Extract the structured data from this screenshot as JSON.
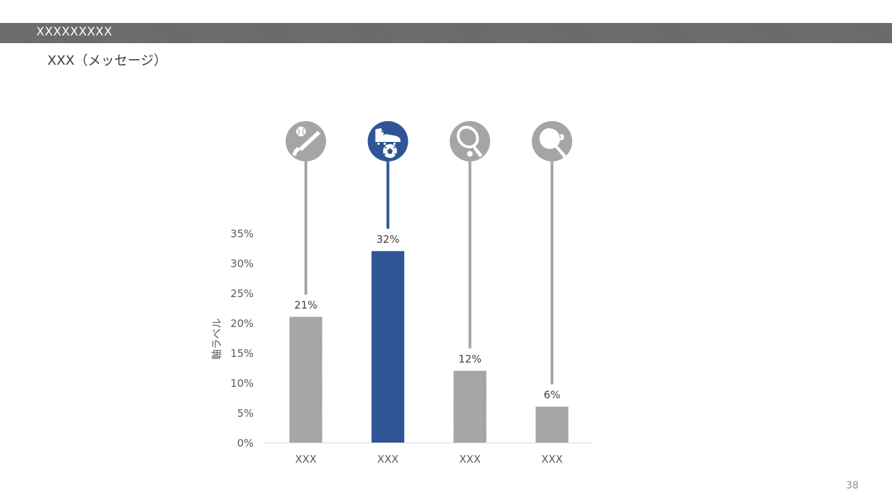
{
  "slide": {
    "header_title": "XXXXXXXXX",
    "message": "XXX（メッセージ）",
    "page_number": "38"
  },
  "colors": {
    "accent": "#2f5597",
    "neutral_bar": "#a5a5a5",
    "header_band": "#6a6a6a",
    "axis_text": "#595959"
  },
  "chart_data": {
    "type": "bar",
    "categories": [
      "XXX",
      "XXX",
      "XXX",
      "XXX"
    ],
    "values": [
      21,
      32,
      12,
      6
    ],
    "data_labels": [
      "21%",
      "32%",
      "12%",
      "6%"
    ],
    "highlight_index": 1,
    "icons": [
      "baseball-icon",
      "soccer-icon",
      "tennis-icon",
      "table-tennis-icon"
    ],
    "ylabel": "軸ラベル",
    "ylim": [
      0,
      35
    ],
    "yticks": [
      0,
      5,
      10,
      15,
      20,
      25,
      30,
      35
    ],
    "ytick_labels": [
      "0%",
      "5%",
      "10%",
      "15%",
      "20%",
      "25%",
      "30%",
      "35%"
    ],
    "grid": false,
    "legend": "none"
  }
}
